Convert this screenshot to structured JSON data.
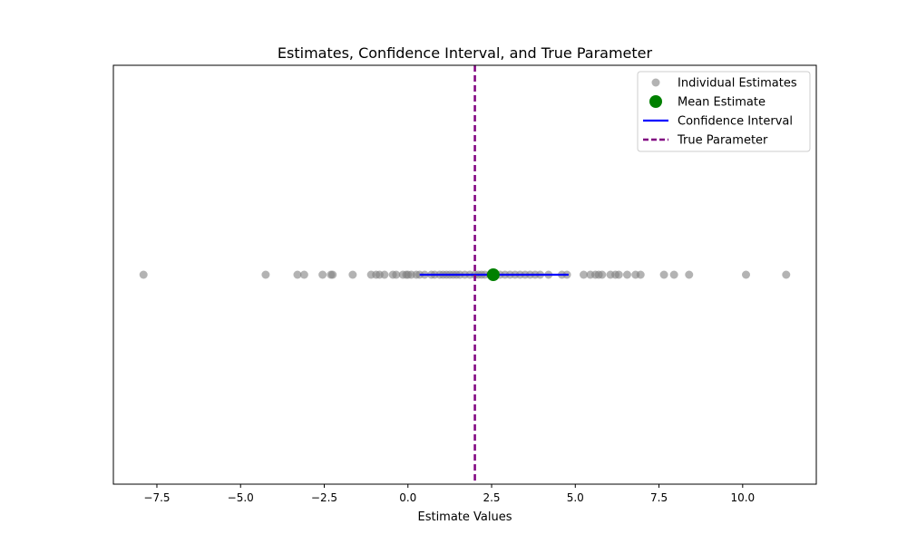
{
  "chart_data": {
    "type": "scatter",
    "title": "Estimates, Confidence Interval, and True Parameter",
    "xlabel": "Estimate Values",
    "ylabel": "",
    "xlim": [
      -8.8,
      12.2
    ],
    "x_ticks": [
      -7.5,
      -5.0,
      -2.5,
      0.0,
      2.5,
      5.0,
      7.5,
      10.0
    ],
    "x_tick_labels": [
      "−7.5",
      "−5.0",
      "−2.5",
      "0.0",
      "2.5",
      "5.0",
      "7.5",
      "10.0"
    ],
    "y_ticks_visible": false,
    "grid": false,
    "legend": {
      "placement": "top-right",
      "entries": [
        {
          "label": "Individual Estimates",
          "kind": "scatter",
          "color": "#808080"
        },
        {
          "label": "Mean Estimate",
          "kind": "point",
          "color": "#008000"
        },
        {
          "label": "Confidence Interval",
          "kind": "line",
          "color": "#0000ff"
        },
        {
          "label": "True Parameter",
          "kind": "dashed-line",
          "color": "#800080"
        }
      ]
    },
    "series": [
      {
        "name": "Individual Estimates",
        "color": "#808080",
        "y": 0,
        "x": [
          -7.9,
          -4.25,
          -3.3,
          -3.1,
          -2.55,
          -2.3,
          -2.25,
          -1.65,
          -1.1,
          -0.95,
          -0.85,
          -0.7,
          -0.45,
          -0.35,
          -0.15,
          -0.05,
          0.0,
          0.1,
          0.25,
          0.35,
          0.5,
          0.7,
          0.8,
          0.95,
          1.05,
          1.15,
          1.25,
          1.35,
          1.45,
          1.55,
          1.7,
          1.85,
          2.0,
          2.1,
          2.2,
          2.3,
          2.45,
          2.6,
          2.75,
          2.9,
          3.05,
          3.2,
          3.35,
          3.5,
          3.65,
          3.8,
          3.95,
          4.2,
          4.6,
          4.75,
          5.25,
          5.45,
          5.6,
          5.7,
          5.8,
          6.05,
          6.2,
          6.3,
          6.55,
          6.8,
          6.95,
          7.65,
          7.95,
          8.4,
          10.1,
          11.3
        ]
      },
      {
        "name": "Mean Estimate",
        "color": "#008000",
        "x": [
          2.55
        ],
        "y": 0
      },
      {
        "name": "Confidence Interval",
        "color": "#0000ff",
        "x": [
          0.35,
          4.8
        ],
        "y": 0
      },
      {
        "name": "True Parameter",
        "color": "#800080",
        "x": 2.0
      }
    ]
  }
}
